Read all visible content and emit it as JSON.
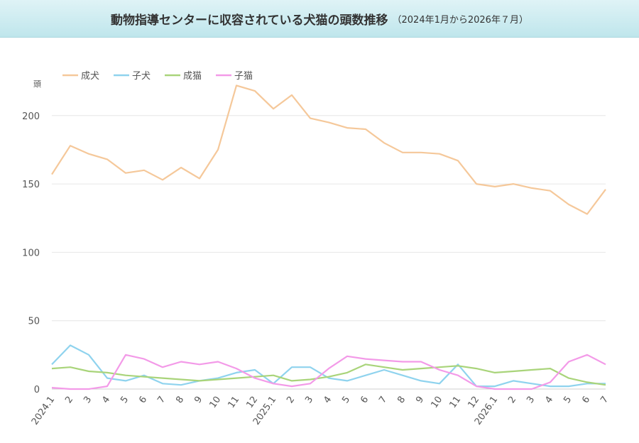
{
  "header": {
    "title": "動物指導センターに収容されている犬猫の頭数推移",
    "subtitle": "（2024年1月から2026年７月）"
  },
  "chart_data": {
    "type": "line",
    "ylabel": "頭",
    "ylim": [
      0,
      230
    ],
    "yticks": [
      0,
      50,
      100,
      150,
      200
    ],
    "grid": true,
    "legend": "top-left",
    "categories": [
      "2024.1",
      "2",
      "3",
      "4",
      "5",
      "6",
      "7",
      "8",
      "9",
      "10",
      "11",
      "12",
      "2025.1",
      "2",
      "3",
      "4",
      "5",
      "6",
      "7",
      "8",
      "9",
      "10",
      "11",
      "12",
      "2026.1",
      "2",
      "3",
      "4",
      "5",
      "6",
      "7"
    ],
    "series": [
      {
        "name": "成犬",
        "color": "#f5c89a",
        "values": [
          157,
          178,
          172,
          168,
          158,
          160,
          153,
          162,
          154,
          175,
          222,
          218,
          205,
          215,
          198,
          195,
          191,
          190,
          180,
          173,
          173,
          172,
          167,
          150,
          148,
          150,
          147,
          145,
          135,
          128,
          146
        ]
      },
      {
        "name": "子犬",
        "color": "#8fd3ee",
        "values": [
          18,
          32,
          25,
          8,
          6,
          10,
          4,
          3,
          6,
          8,
          12,
          14,
          4,
          16,
          16,
          8,
          6,
          10,
          14,
          10,
          6,
          4,
          18,
          2,
          2,
          6,
          4,
          2,
          2,
          4,
          4
        ]
      },
      {
        "name": "成猫",
        "color": "#a9d47a",
        "values": [
          15,
          16,
          13,
          12,
          10,
          9,
          8,
          7,
          6,
          7,
          8,
          9,
          10,
          6,
          7,
          9,
          12,
          18,
          16,
          14,
          15,
          16,
          17,
          15,
          12,
          13,
          14,
          15,
          8,
          5,
          3
        ]
      },
      {
        "name": "子猫",
        "color": "#f39ae8",
        "values": [
          1,
          0,
          0,
          2,
          25,
          22,
          16,
          20,
          18,
          20,
          15,
          8,
          4,
          2,
          4,
          15,
          24,
          22,
          21,
          20,
          20,
          14,
          10,
          2,
          0,
          0,
          0,
          5,
          20,
          25,
          18
        ]
      }
    ]
  }
}
